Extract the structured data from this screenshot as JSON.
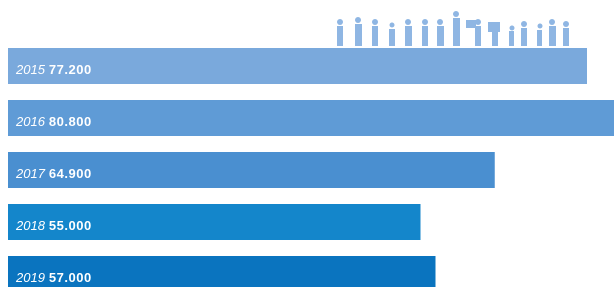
{
  "chart_data": {
    "type": "bar",
    "categories": [
      "2015",
      "2016",
      "2017",
      "2018",
      "2019"
    ],
    "values": [
      77200,
      80800,
      64900,
      55000,
      57000
    ],
    "value_labels": [
      "77.200",
      "80.800",
      "64.900",
      "55.000",
      "57.000"
    ],
    "colors": [
      "#7aa9dc",
      "#5f9bd6",
      "#4a8fd0",
      "#1486cb",
      "#0a74bf"
    ]
  }
}
